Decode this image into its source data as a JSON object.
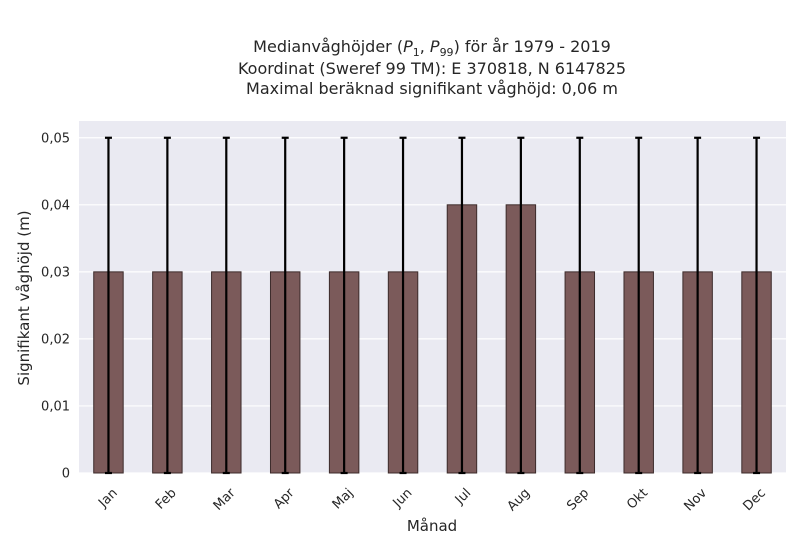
{
  "chart_data": {
    "type": "bar",
    "title_prefix": "Medianvåghöjder (",
    "title_p1": "P",
    "title_p1_sub": "1",
    "title_sep": ", ",
    "title_p99": "P",
    "title_p99_sub": "99",
    "title_suffix": ") för år 1979 - 2019",
    "subtitle_1": "Koordinat (Sweref 99 TM): E 370818, N 6147825",
    "subtitle_2": "Maximal beräknad signifikant våghöjd: 0,06 m",
    "xlabel": "Månad",
    "ylabel": "Signifikant våghöjd (m)",
    "categories": [
      "Jan",
      "Feb",
      "Mar",
      "Apr",
      "Maj",
      "Jun",
      "Jul",
      "Aug",
      "Sep",
      "Okt",
      "Nov",
      "Dec"
    ],
    "values": [
      0.03,
      0.03,
      0.03,
      0.03,
      0.03,
      0.03,
      0.04,
      0.04,
      0.03,
      0.03,
      0.03,
      0.03
    ],
    "error_low": [
      0,
      0,
      0,
      0,
      0,
      0,
      0,
      0,
      0,
      0,
      0,
      0
    ],
    "error_high": [
      0.05,
      0.05,
      0.05,
      0.05,
      0.05,
      0.05,
      0.05,
      0.05,
      0.05,
      0.05,
      0.05,
      0.05
    ],
    "ylim": [
      0,
      0.0525
    ],
    "yticks": [
      0,
      0.01,
      0.02,
      0.03,
      0.04,
      0.05
    ],
    "ytick_labels": [
      "0",
      "0,01",
      "0,02",
      "0,03",
      "0,04",
      "0,05"
    ],
    "grid": true,
    "colors": {
      "bar": "#7b5a5a",
      "bar_edge": "#3c2b2b",
      "plot_bg": "#eaeaf2",
      "grid": "#ffffff",
      "error_bar": "#000000"
    }
  }
}
